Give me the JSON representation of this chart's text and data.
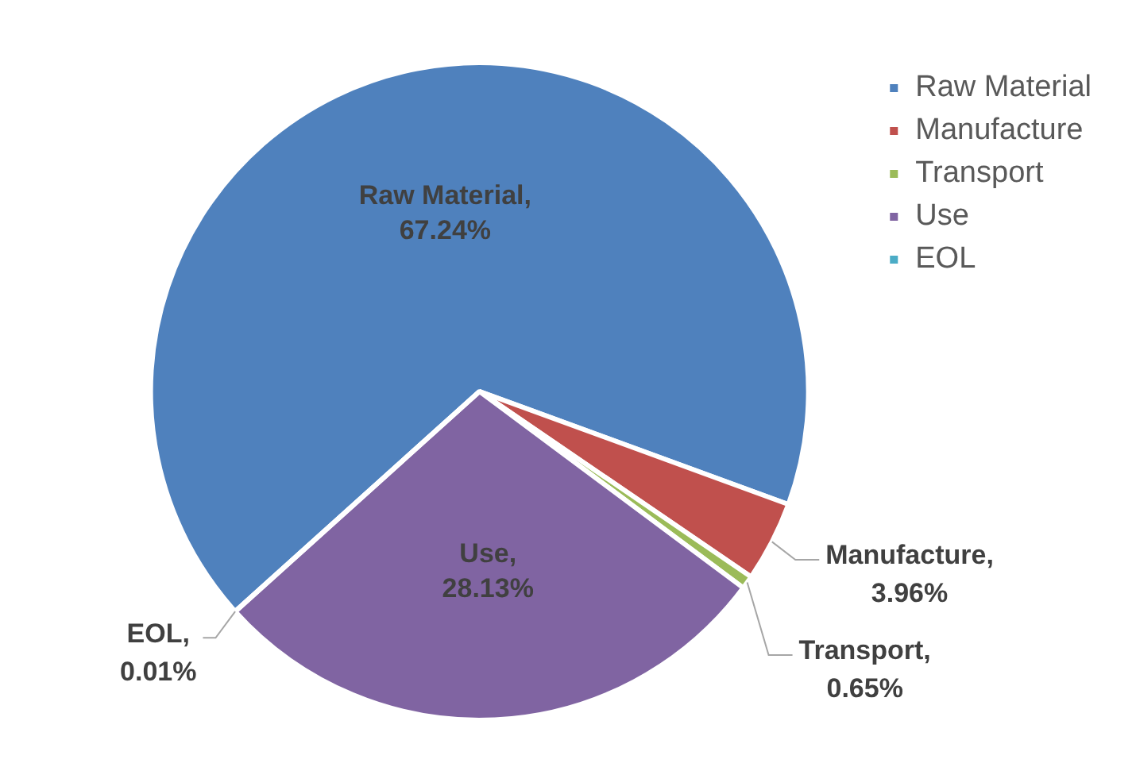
{
  "chart_data": {
    "type": "pie",
    "categories": [
      "Raw Material",
      "Manufacture",
      "Transport",
      "Use",
      "EOL"
    ],
    "values": [
      67.24,
      3.96,
      0.65,
      28.13,
      0.01
    ],
    "colors": [
      "#4f81bd",
      "#c0504d",
      "#9bbb59",
      "#8064a2",
      "#4bacc6"
    ],
    "value_labels": [
      "Raw Material,\n67.24%",
      "Manufacture,\n3.96%",
      "Transport,\n0.65%",
      "Use,\n28.13%",
      "EOL,\n0.01%"
    ],
    "legend": "top right"
  }
}
